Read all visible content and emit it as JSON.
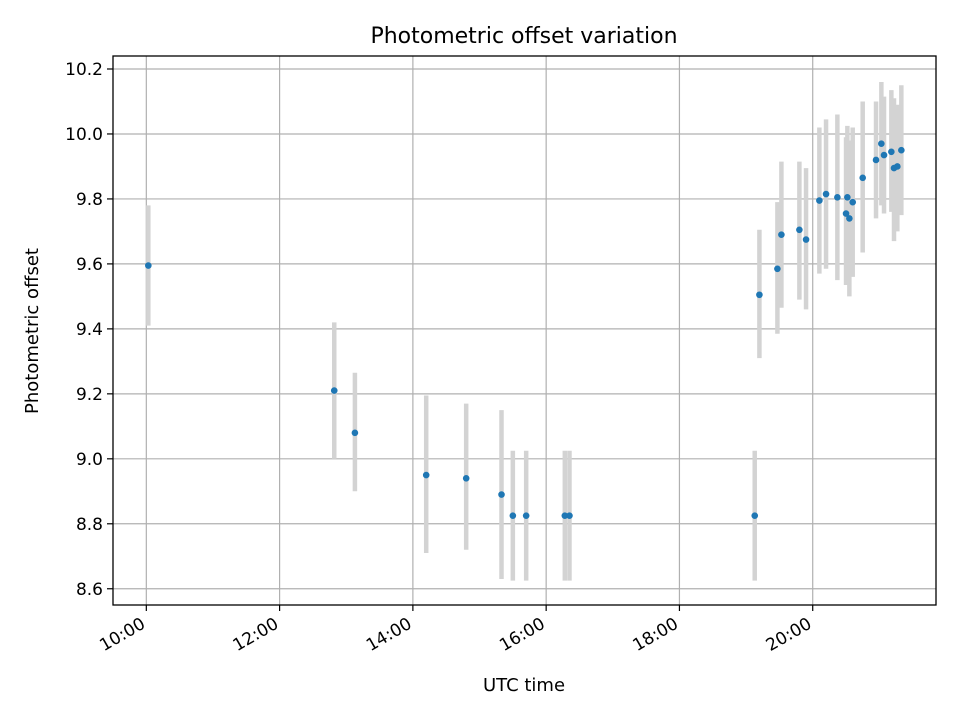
{
  "chart_data": {
    "type": "scatter",
    "title": "Photometric offset variation",
    "xlabel": "UTC time",
    "ylabel": "Photometric offset",
    "x_unit": "hour of day (UTC)",
    "xlim": [
      9.5,
      21.85
    ],
    "ylim": [
      8.55,
      10.24
    ],
    "x_ticks": [
      {
        "value": 10,
        "label": "10:00"
      },
      {
        "value": 12,
        "label": "12:00"
      },
      {
        "value": 14,
        "label": "14:00"
      },
      {
        "value": 16,
        "label": "16:00"
      },
      {
        "value": 18,
        "label": "18:00"
      },
      {
        "value": 20,
        "label": "20:00"
      }
    ],
    "y_ticks": [
      {
        "value": 8.6,
        "label": "8.6"
      },
      {
        "value": 8.8,
        "label": "8.8"
      },
      {
        "value": 9.0,
        "label": "9.0"
      },
      {
        "value": 9.2,
        "label": "9.2"
      },
      {
        "value": 9.4,
        "label": "9.4"
      },
      {
        "value": 9.6,
        "label": "9.6"
      },
      {
        "value": 9.8,
        "label": "9.8"
      },
      {
        "value": 10.0,
        "label": "10.0"
      },
      {
        "value": 10.2,
        "label": "10.2"
      }
    ],
    "grid": true,
    "point_color": "#1f77b4",
    "errorbar_color": "#d3d3d3",
    "points": [
      {
        "x": 10.03,
        "y": 9.595,
        "err_low": 9.41,
        "err_high": 9.78
      },
      {
        "x": 12.82,
        "y": 9.21,
        "err_low": 9.0,
        "err_high": 9.42
      },
      {
        "x": 13.13,
        "y": 9.08,
        "err_low": 8.9,
        "err_high": 9.265
      },
      {
        "x": 14.2,
        "y": 8.95,
        "err_low": 8.71,
        "err_high": 9.195
      },
      {
        "x": 14.8,
        "y": 8.94,
        "err_low": 8.72,
        "err_high": 9.17
      },
      {
        "x": 15.33,
        "y": 8.89,
        "err_low": 8.63,
        "err_high": 9.15
      },
      {
        "x": 15.5,
        "y": 8.825,
        "err_low": 8.625,
        "err_high": 9.025
      },
      {
        "x": 15.7,
        "y": 8.825,
        "err_low": 8.625,
        "err_high": 9.025
      },
      {
        "x": 16.28,
        "y": 8.825,
        "err_low": 8.625,
        "err_high": 9.025
      },
      {
        "x": 16.35,
        "y": 8.825,
        "err_low": 8.625,
        "err_high": 9.025
      },
      {
        "x": 19.13,
        "y": 8.825,
        "err_low": 8.625,
        "err_high": 9.025
      },
      {
        "x": 19.2,
        "y": 9.505,
        "err_low": 9.31,
        "err_high": 9.705
      },
      {
        "x": 19.47,
        "y": 9.585,
        "err_low": 9.385,
        "err_high": 9.79
      },
      {
        "x": 19.53,
        "y": 9.69,
        "err_low": 9.465,
        "err_high": 9.915
      },
      {
        "x": 19.8,
        "y": 9.705,
        "err_low": 9.49,
        "err_high": 9.915
      },
      {
        "x": 19.9,
        "y": 9.675,
        "err_low": 9.46,
        "err_high": 9.895
      },
      {
        "x": 20.1,
        "y": 9.795,
        "err_low": 9.57,
        "err_high": 10.02
      },
      {
        "x": 20.2,
        "y": 9.815,
        "err_low": 9.585,
        "err_high": 10.045
      },
      {
        "x": 20.37,
        "y": 9.805,
        "err_low": 9.55,
        "err_high": 10.06
      },
      {
        "x": 20.5,
        "y": 9.755,
        "err_low": 9.535,
        "err_high": 9.99
      },
      {
        "x": 20.55,
        "y": 9.74,
        "err_low": 9.5,
        "err_high": 9.98
      },
      {
        "x": 20.52,
        "y": 9.805,
        "err_low": 9.57,
        "err_high": 10.025
      },
      {
        "x": 20.6,
        "y": 9.79,
        "err_low": 9.56,
        "err_high": 10.02
      },
      {
        "x": 20.75,
        "y": 9.865,
        "err_low": 9.635,
        "err_high": 10.1
      },
      {
        "x": 20.95,
        "y": 9.92,
        "err_low": 9.74,
        "err_high": 10.1
      },
      {
        "x": 21.03,
        "y": 9.97,
        "err_low": 9.78,
        "err_high": 10.16
      },
      {
        "x": 21.07,
        "y": 9.935,
        "err_low": 9.755,
        "err_high": 10.115
      },
      {
        "x": 21.18,
        "y": 9.945,
        "err_low": 9.76,
        "err_high": 10.135
      },
      {
        "x": 21.22,
        "y": 9.895,
        "err_low": 9.67,
        "err_high": 10.11
      },
      {
        "x": 21.27,
        "y": 9.9,
        "err_low": 9.7,
        "err_high": 10.09
      },
      {
        "x": 21.33,
        "y": 9.95,
        "err_low": 9.75,
        "err_high": 10.15
      }
    ]
  }
}
